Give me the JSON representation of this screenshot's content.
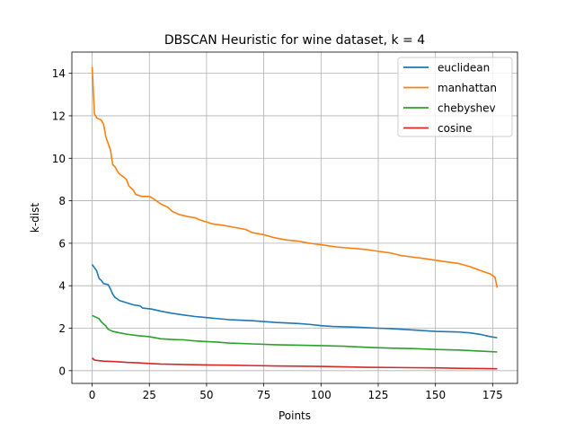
{
  "chart_data": {
    "type": "line",
    "title": "DBSCAN Heuristic for wine dataset, k = 4",
    "xlabel": "Points",
    "ylabel": "k-dist",
    "xlim": [
      -8.85,
      185.85
    ],
    "ylim": [
      -0.6,
      15.0
    ],
    "xticks": [
      0,
      25,
      50,
      75,
      100,
      125,
      150,
      175
    ],
    "yticks": [
      0,
      2,
      4,
      6,
      8,
      10,
      12,
      14
    ],
    "grid": true,
    "legend_position": "top-right",
    "series": [
      {
        "name": "euclidean",
        "color": "#1f77b4",
        "points": [
          [
            0,
            5.0
          ],
          [
            1,
            4.85
          ],
          [
            2,
            4.7
          ],
          [
            3,
            4.35
          ],
          [
            4,
            4.25
          ],
          [
            5,
            4.1
          ],
          [
            7,
            4.05
          ],
          [
            8,
            3.85
          ],
          [
            9,
            3.6
          ],
          [
            10,
            3.45
          ],
          [
            12,
            3.3
          ],
          [
            15,
            3.2
          ],
          [
            18,
            3.1
          ],
          [
            21,
            3.05
          ],
          [
            22,
            2.95
          ],
          [
            26,
            2.9
          ],
          [
            30,
            2.8
          ],
          [
            35,
            2.7
          ],
          [
            40,
            2.62
          ],
          [
            45,
            2.55
          ],
          [
            50,
            2.5
          ],
          [
            55,
            2.45
          ],
          [
            60,
            2.4
          ],
          [
            70,
            2.35
          ],
          [
            80,
            2.27
          ],
          [
            90,
            2.22
          ],
          [
            95,
            2.18
          ],
          [
            100,
            2.12
          ],
          [
            105,
            2.08
          ],
          [
            115,
            2.05
          ],
          [
            125,
            2.0
          ],
          [
            130,
            1.98
          ],
          [
            140,
            1.92
          ],
          [
            150,
            1.85
          ],
          [
            160,
            1.82
          ],
          [
            165,
            1.78
          ],
          [
            170,
            1.7
          ],
          [
            174,
            1.6
          ],
          [
            177,
            1.55
          ]
        ]
      },
      {
        "name": "manhattan",
        "color": "#ff7f0e",
        "points": [
          [
            0,
            14.3
          ],
          [
            0.5,
            13.2
          ],
          [
            1,
            12.1
          ],
          [
            2,
            11.9
          ],
          [
            4,
            11.8
          ],
          [
            5,
            11.6
          ],
          [
            6,
            11.0
          ],
          [
            7,
            10.7
          ],
          [
            8,
            10.4
          ],
          [
            9,
            9.7
          ],
          [
            10,
            9.6
          ],
          [
            11,
            9.4
          ],
          [
            12,
            9.25
          ],
          [
            14,
            9.1
          ],
          [
            15,
            9.0
          ],
          [
            16,
            8.7
          ],
          [
            18,
            8.5
          ],
          [
            19,
            8.3
          ],
          [
            22,
            8.2
          ],
          [
            25,
            8.2
          ],
          [
            26,
            8.15
          ],
          [
            28,
            8.0
          ],
          [
            30,
            7.85
          ],
          [
            33,
            7.7
          ],
          [
            35,
            7.5
          ],
          [
            38,
            7.35
          ],
          [
            42,
            7.25
          ],
          [
            45,
            7.2
          ],
          [
            47,
            7.1
          ],
          [
            50,
            7.0
          ],
          [
            53,
            6.9
          ],
          [
            57,
            6.85
          ],
          [
            62,
            6.75
          ],
          [
            67,
            6.65
          ],
          [
            70,
            6.5
          ],
          [
            75,
            6.4
          ],
          [
            80,
            6.25
          ],
          [
            85,
            6.15
          ],
          [
            90,
            6.1
          ],
          [
            95,
            6.0
          ],
          [
            100,
            5.93
          ],
          [
            103,
            5.88
          ],
          [
            107,
            5.82
          ],
          [
            115,
            5.75
          ],
          [
            120,
            5.7
          ],
          [
            125,
            5.62
          ],
          [
            130,
            5.55
          ],
          [
            135,
            5.42
          ],
          [
            140,
            5.35
          ],
          [
            145,
            5.28
          ],
          [
            150,
            5.2
          ],
          [
            155,
            5.12
          ],
          [
            160,
            5.05
          ],
          [
            165,
            4.9
          ],
          [
            170,
            4.7
          ],
          [
            174,
            4.55
          ],
          [
            176,
            4.4
          ],
          [
            177,
            3.9
          ]
        ]
      },
      {
        "name": "chebyshev",
        "color": "#2ca02c",
        "points": [
          [
            0,
            2.6
          ],
          [
            1,
            2.55
          ],
          [
            2,
            2.5
          ],
          [
            3,
            2.45
          ],
          [
            4,
            2.3
          ],
          [
            5,
            2.2
          ],
          [
            6,
            2.1
          ],
          [
            7,
            1.95
          ],
          [
            9,
            1.85
          ],
          [
            12,
            1.78
          ],
          [
            15,
            1.72
          ],
          [
            20,
            1.65
          ],
          [
            25,
            1.6
          ],
          [
            30,
            1.5
          ],
          [
            35,
            1.47
          ],
          [
            40,
            1.45
          ],
          [
            45,
            1.4
          ],
          [
            50,
            1.37
          ],
          [
            55,
            1.34
          ],
          [
            60,
            1.3
          ],
          [
            70,
            1.26
          ],
          [
            80,
            1.22
          ],
          [
            90,
            1.2
          ],
          [
            100,
            1.18
          ],
          [
            110,
            1.15
          ],
          [
            120,
            1.1
          ],
          [
            130,
            1.06
          ],
          [
            140,
            1.04
          ],
          [
            150,
            1.0
          ],
          [
            160,
            0.97
          ],
          [
            170,
            0.92
          ],
          [
            177,
            0.88
          ]
        ]
      },
      {
        "name": "cosine",
        "color": "#d62728",
        "points": [
          [
            0,
            0.6
          ],
          [
            1,
            0.5
          ],
          [
            3,
            0.47
          ],
          [
            5,
            0.45
          ],
          [
            10,
            0.43
          ],
          [
            15,
            0.39
          ],
          [
            20,
            0.37
          ],
          [
            25,
            0.34
          ],
          [
            30,
            0.31
          ],
          [
            40,
            0.29
          ],
          [
            50,
            0.27
          ],
          [
            60,
            0.26
          ],
          [
            70,
            0.24
          ],
          [
            80,
            0.22
          ],
          [
            90,
            0.21
          ],
          [
            100,
            0.2
          ],
          [
            110,
            0.18
          ],
          [
            120,
            0.16
          ],
          [
            130,
            0.15
          ],
          [
            140,
            0.14
          ],
          [
            150,
            0.13
          ],
          [
            160,
            0.11
          ],
          [
            170,
            0.1
          ],
          [
            177,
            0.09
          ]
        ]
      }
    ]
  }
}
